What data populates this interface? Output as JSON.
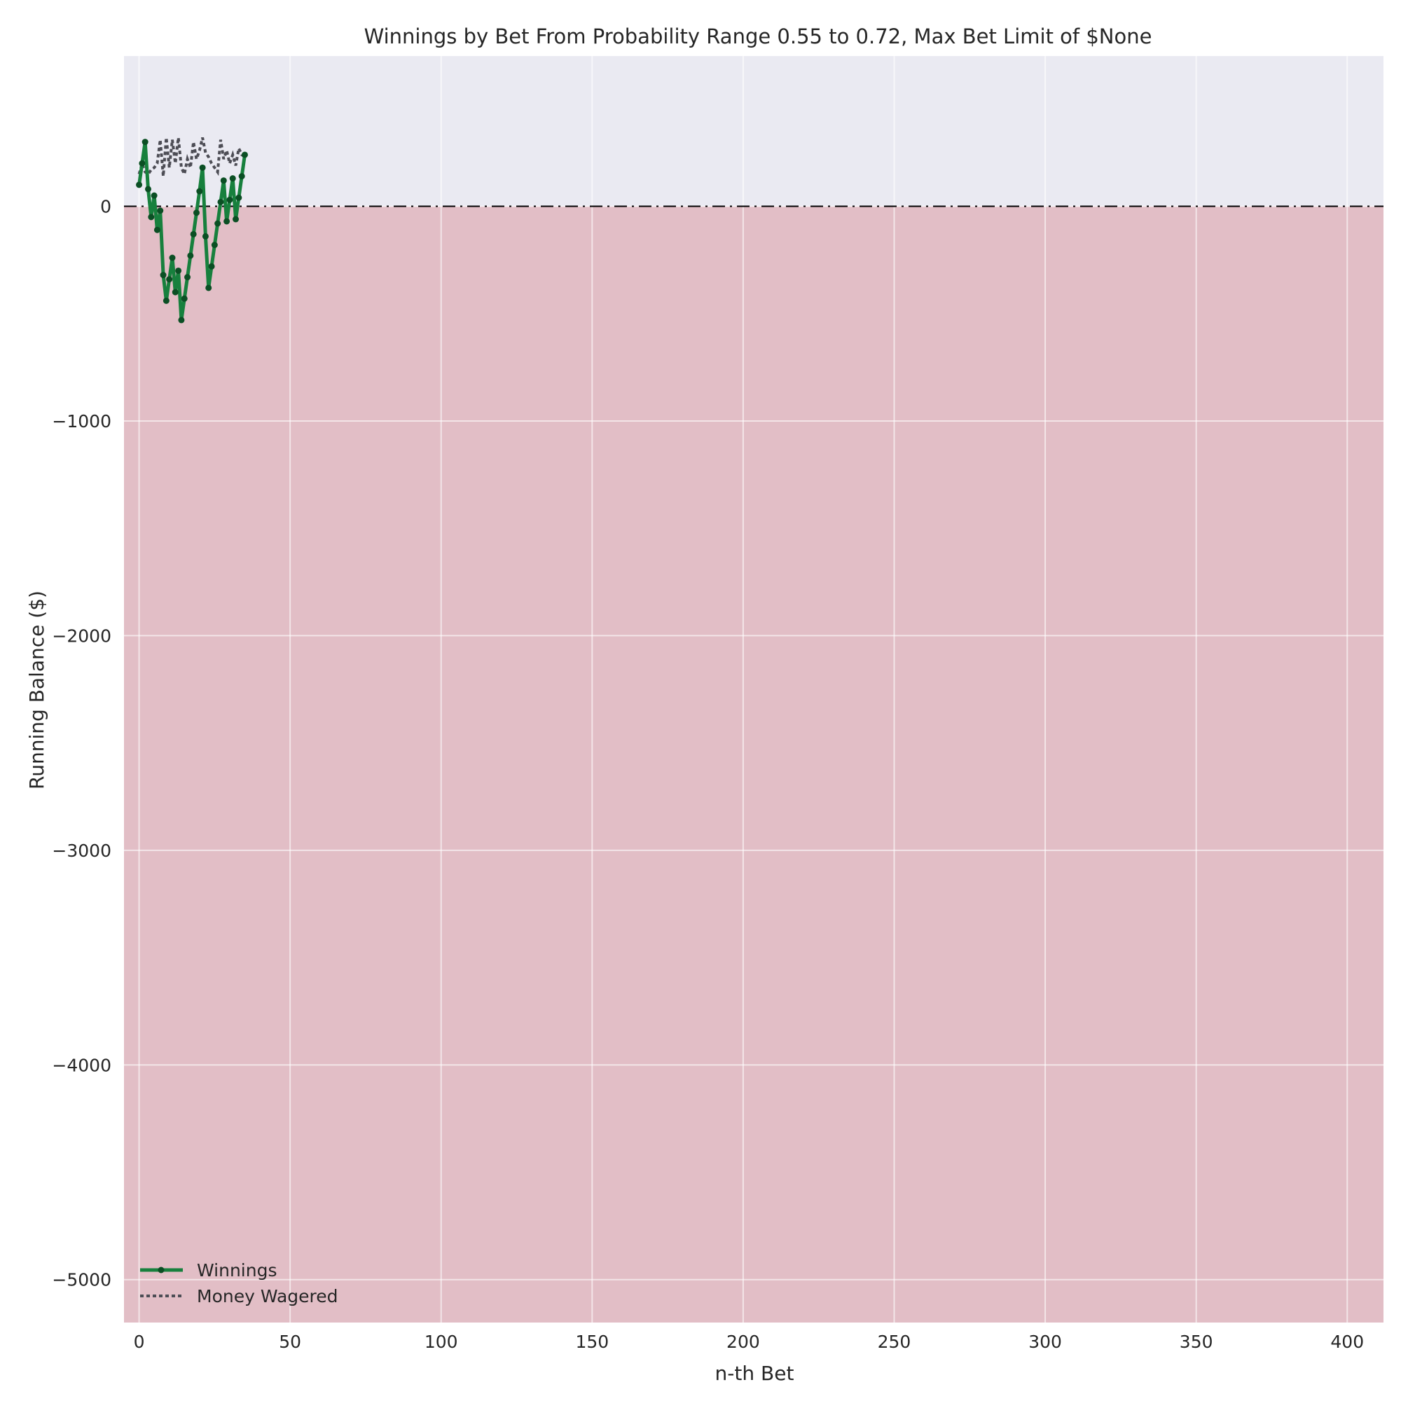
{
  "chart_data": {
    "type": "line",
    "title": "Winnings by Bet From Probability Range 0.55 to 0.72, Max Bet Limit of $None",
    "xlabel": "n-th Bet",
    "ylabel": "Running Balance ($)",
    "xlim": [
      -5,
      412
    ],
    "ylim": [
      -5200,
      700
    ],
    "xticks": [
      0,
      50,
      100,
      150,
      200,
      250,
      300,
      350,
      400
    ],
    "xtick_labels": [
      "0",
      "50",
      "100",
      "150",
      "200",
      "250",
      "300",
      "350",
      "400"
    ],
    "yticks": [
      0,
      -1000,
      -2000,
      -3000,
      -4000,
      -5000
    ],
    "ytick_labels": [
      "0",
      "−1000",
      "−2000",
      "−3000",
      "−4000",
      "−5000"
    ],
    "grid": true,
    "legend_position": "lower-left",
    "reference_line": {
      "y": 0,
      "style": "dash-dot",
      "color": "#000000"
    },
    "regions": [
      {
        "name": "positive",
        "from": 0,
        "to": 700,
        "color": "#eaeaf2"
      },
      {
        "name": "negative",
        "from": -5200,
        "to": 0,
        "color": "#e2bec6"
      }
    ],
    "series": [
      {
        "name": "Winnings",
        "color": "#17803d",
        "marker_color": "#0b4f24",
        "style": "solid-with-markers",
        "x": [
          0,
          1,
          2,
          3,
          4,
          5,
          6,
          7,
          8,
          9,
          10,
          11,
          12,
          13,
          14,
          15,
          16,
          17,
          18,
          19,
          20,
          21,
          22,
          23,
          24,
          25,
          26,
          27,
          28,
          29,
          30,
          31,
          32,
          33,
          34,
          35
        ],
        "y": [
          100,
          200,
          300,
          80,
          -50,
          50,
          -110,
          -20,
          -320,
          -440,
          -340,
          -240,
          -400,
          -300,
          -530,
          -430,
          -330,
          -230,
          -130,
          -30,
          70,
          180,
          -140,
          -380,
          -280,
          -180,
          -80,
          20,
          120,
          -70,
          30,
          130,
          -60,
          40,
          140,
          240
        ]
      },
      {
        "name": "Money Wagered",
        "color": "#4d4d55",
        "style": "dotted",
        "x": [
          0,
          1,
          2,
          3,
          4,
          5,
          6,
          7,
          8,
          9,
          10,
          11,
          12,
          13,
          14,
          15,
          16,
          17,
          18,
          19,
          20,
          21,
          22,
          23,
          24,
          25,
          26,
          27,
          28,
          29,
          30,
          31,
          32,
          33,
          34,
          35
        ],
        "y": [
          150,
          200,
          160,
          150,
          170,
          180,
          200,
          310,
          140,
          320,
          180,
          310,
          200,
          320,
          180,
          150,
          220,
          180,
          300,
          220,
          260,
          320,
          250,
          230,
          200,
          180,
          160,
          310,
          220,
          260,
          200,
          240,
          190,
          270,
          240,
          230
        ]
      }
    ]
  }
}
